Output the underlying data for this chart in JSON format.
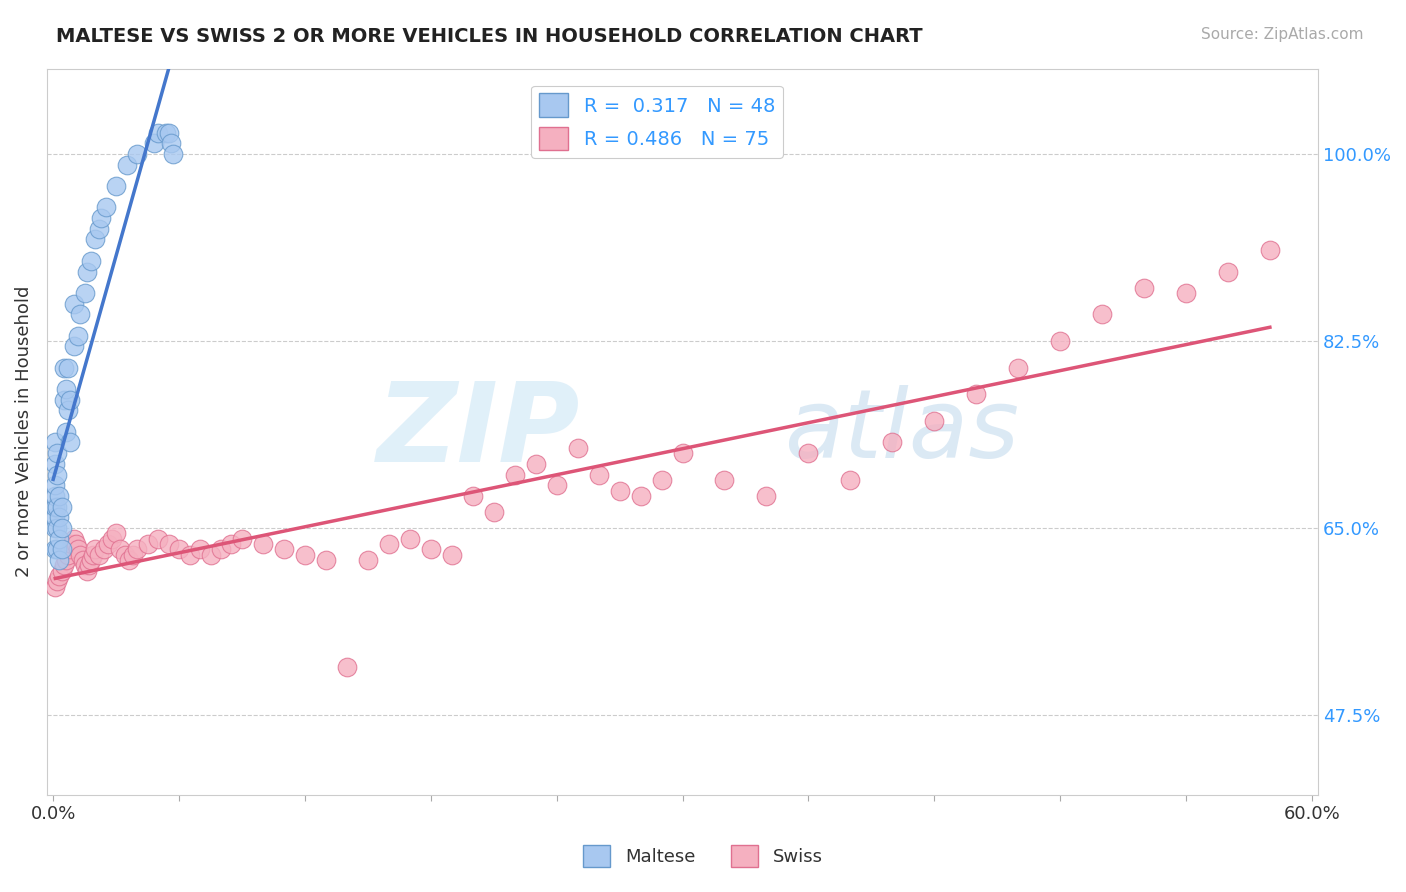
{
  "title": "MALTESE VS SWISS 2 OR MORE VEHICLES IN HOUSEHOLD CORRELATION CHART",
  "source_text": "Source: ZipAtlas.com",
  "ylabel": "2 or more Vehicles in Household",
  "xlim": [
    -0.003,
    0.603
  ],
  "ylim": [
    0.4,
    1.08
  ],
  "xticks": [
    0.0,
    0.06,
    0.12,
    0.18,
    0.24,
    0.3,
    0.36,
    0.42,
    0.48,
    0.54,
    0.6
  ],
  "xticklabels": [
    "0.0%",
    "",
    "",
    "",
    "",
    "",
    "",
    "",
    "",
    "",
    "60.0%"
  ],
  "yticks_right": [
    0.475,
    0.65,
    0.825,
    1.0
  ],
  "yticklabels_right": [
    "47.5%",
    "65.0%",
    "82.5%",
    "100.0%"
  ],
  "maltese_color": "#a8c8f0",
  "maltese_edge": "#6699cc",
  "swiss_color": "#f5b0c0",
  "swiss_edge": "#e07090",
  "trend_maltese_color": "#4477cc",
  "trend_swiss_color": "#dd5577",
  "legend_label_maltese": "R =  0.317   N = 48",
  "legend_label_swiss": "R = 0.486   N = 75",
  "maltese_x": [
    0.001,
    0.001,
    0.001,
    0.001,
    0.001,
    0.001,
    0.001,
    0.001,
    0.002,
    0.002,
    0.002,
    0.002,
    0.002,
    0.003,
    0.003,
    0.003,
    0.003,
    0.004,
    0.004,
    0.004,
    0.005,
    0.005,
    0.006,
    0.006,
    0.007,
    0.007,
    0.008,
    0.008,
    0.01,
    0.01,
    0.012,
    0.013,
    0.015,
    0.016,
    0.018,
    0.02,
    0.022,
    0.023,
    0.025,
    0.03,
    0.035,
    0.04,
    0.048,
    0.05,
    0.054,
    0.055,
    0.056,
    0.057
  ],
  "maltese_y": [
    0.63,
    0.65,
    0.66,
    0.67,
    0.68,
    0.69,
    0.71,
    0.73,
    0.63,
    0.65,
    0.67,
    0.7,
    0.72,
    0.62,
    0.64,
    0.66,
    0.68,
    0.63,
    0.65,
    0.67,
    0.77,
    0.8,
    0.74,
    0.78,
    0.76,
    0.8,
    0.73,
    0.77,
    0.82,
    0.86,
    0.83,
    0.85,
    0.87,
    0.89,
    0.9,
    0.92,
    0.93,
    0.94,
    0.95,
    0.97,
    0.99,
    1.0,
    1.01,
    1.02,
    1.02,
    1.02,
    1.01,
    1.0
  ],
  "swiss_x": [
    0.001,
    0.002,
    0.003,
    0.004,
    0.005,
    0.006,
    0.007,
    0.008,
    0.009,
    0.01,
    0.011,
    0.012,
    0.013,
    0.014,
    0.015,
    0.016,
    0.017,
    0.018,
    0.019,
    0.02,
    0.022,
    0.024,
    0.026,
    0.028,
    0.03,
    0.032,
    0.034,
    0.036,
    0.038,
    0.04,
    0.045,
    0.05,
    0.055,
    0.06,
    0.065,
    0.07,
    0.075,
    0.08,
    0.085,
    0.09,
    0.1,
    0.11,
    0.12,
    0.13,
    0.14,
    0.15,
    0.16,
    0.17,
    0.18,
    0.19,
    0.2,
    0.21,
    0.22,
    0.23,
    0.24,
    0.25,
    0.26,
    0.27,
    0.28,
    0.29,
    0.3,
    0.32,
    0.34,
    0.36,
    0.38,
    0.4,
    0.42,
    0.44,
    0.46,
    0.48,
    0.5,
    0.52,
    0.54,
    0.56,
    0.58
  ],
  "swiss_y": [
    0.595,
    0.6,
    0.605,
    0.61,
    0.615,
    0.62,
    0.625,
    0.63,
    0.635,
    0.64,
    0.635,
    0.63,
    0.625,
    0.62,
    0.615,
    0.61,
    0.615,
    0.62,
    0.625,
    0.63,
    0.625,
    0.63,
    0.635,
    0.64,
    0.645,
    0.63,
    0.625,
    0.62,
    0.625,
    0.63,
    0.635,
    0.64,
    0.635,
    0.63,
    0.625,
    0.63,
    0.625,
    0.63,
    0.635,
    0.64,
    0.635,
    0.63,
    0.625,
    0.62,
    0.52,
    0.62,
    0.635,
    0.64,
    0.63,
    0.625,
    0.68,
    0.665,
    0.7,
    0.71,
    0.69,
    0.725,
    0.7,
    0.685,
    0.68,
    0.695,
    0.72,
    0.695,
    0.68,
    0.72,
    0.695,
    0.73,
    0.75,
    0.775,
    0.8,
    0.825,
    0.85,
    0.875,
    0.87,
    0.89,
    0.91
  ]
}
